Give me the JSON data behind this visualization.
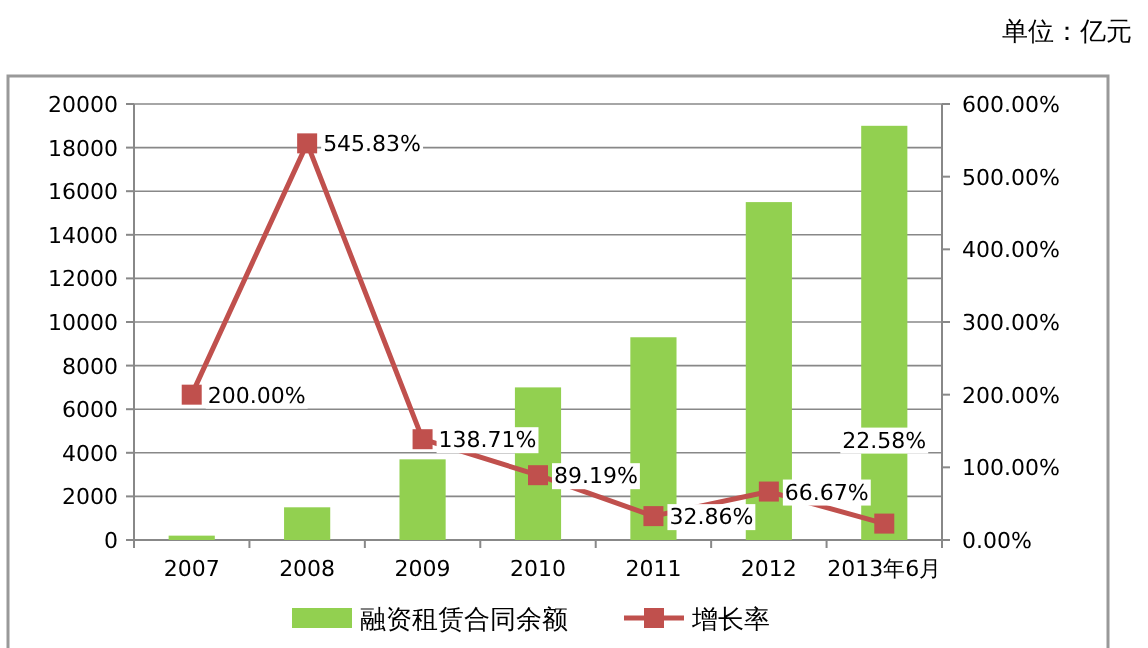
{
  "chart_data": {
    "type": "bar",
    "categories": [
      "2007",
      "2008",
      "2009",
      "2010",
      "2011",
      "2012",
      "2013年6月"
    ],
    "series": [
      {
        "name": "融资租赁合同余额",
        "color": "#92d050",
        "values": [
          200,
          1500,
          3700,
          7000,
          9300,
          15500,
          19000
        ]
      },
      {
        "name": "增长率",
        "type": "line",
        "axis": "y2",
        "color": "#c0504d",
        "marker": "square",
        "values": [
          200,
          545.83,
          138.71,
          89.19,
          32.86,
          66.67,
          22.58
        ],
        "value_labels": [
          "200.00%",
          "545.83%",
          "138.71%",
          "89.19%",
          "32.86%",
          "66.67%",
          "22.58%"
        ]
      }
    ],
    "ylim": [
      0,
      20000
    ],
    "yticks": [
      0,
      2000,
      4000,
      6000,
      8000,
      10000,
      12000,
      14000,
      16000,
      18000,
      20000
    ],
    "y2lim": [
      0,
      600
    ],
    "y2ticks": [
      {
        "value": 0,
        "label": "0.00%"
      },
      {
        "value": 100,
        "label": "100.00%"
      },
      {
        "value": 200,
        "label": "200.00%"
      },
      {
        "value": 300,
        "label": "300.00%"
      },
      {
        "value": 400,
        "label": "400.00%"
      },
      {
        "value": 500,
        "label": "500.00%"
      },
      {
        "value": 600,
        "label": "600.00%"
      }
    ],
    "grid": "y",
    "legend": "bottom",
    "annotations": [
      "单位：亿元"
    ]
  }
}
